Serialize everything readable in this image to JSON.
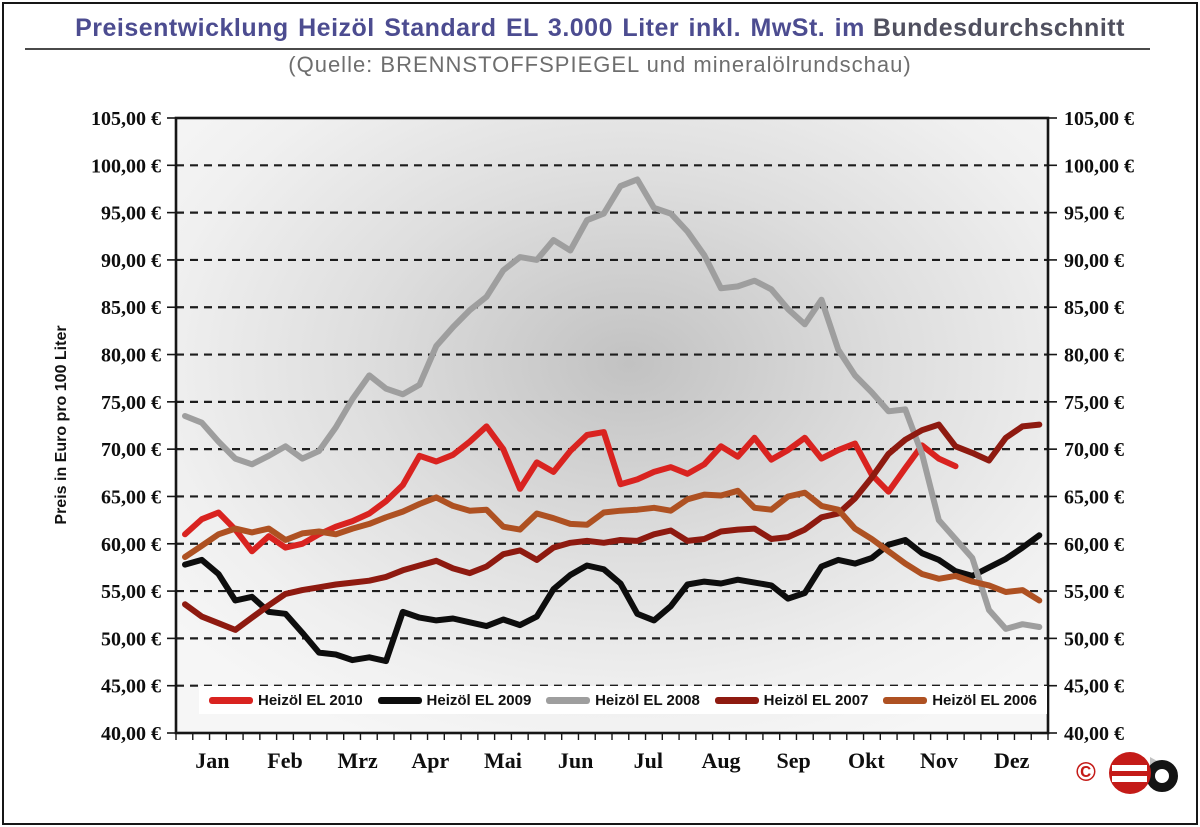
{
  "title": {
    "main": "Preisentwicklung Heizöl Standard EL 3.000 Liter inkl. MwSt. im",
    "tail": "Bundesdurchschnitt",
    "subtitle": "(Quelle: BRENNSTOFFSPIEGEL und mineralölrundschau)"
  },
  "colors": {
    "title_main": "#4c4c90",
    "title_tail": "#50505f",
    "subtitle": "#6e6e6e",
    "axis": "#161616",
    "grid": "#1d1d1d",
    "tick_label": "#0e0e0e",
    "plot_bg_center": "#c2c2c2",
    "plot_bg_mid": "#dedede",
    "plot_bg_edge": "#f6f6f6",
    "legend_bg": "#ffffff",
    "logo_red": "#c41b18",
    "logo_black": "#141414",
    "logo_gray": "#c2c2c2"
  },
  "y_axis": {
    "label": "Preis in Euro pro 100 Liter",
    "tick_labels": [
      "105,00 €",
      "100,00 €",
      "95,00 €",
      "90,00 €",
      "85,00 €",
      "80,00 €",
      "75,00 €",
      "70,00 €",
      "65,00 €",
      "60,00 €",
      "55,00 €",
      "50,00 €",
      "45,00 €",
      "40,00 €"
    ]
  },
  "logo": {
    "copyright": "©"
  },
  "chart_data": {
    "type": "line",
    "title": "Preisentwicklung Heizöl Standard EL 3.000 Liter inkl. MwSt. im Bundesdurchschnitt",
    "source": "(Quelle: BRENNSTOFFSPIEGEL und mineralölrundschau)",
    "ylabel": "Preis in Euro pro 100 Liter",
    "ylim": [
      40,
      105
    ],
    "y_tick_step": 5,
    "grid": "horizontal dashed, solid frame",
    "legend_position": "bottom inside plot",
    "x_unit": "week",
    "points_per_series": 52,
    "categories": [
      "Jan",
      "Feb",
      "Mrz",
      "Apr",
      "Mai",
      "Jun",
      "Jul",
      "Aug",
      "Sep",
      "Okt",
      "Nov",
      "Dez"
    ],
    "series": [
      {
        "name": "Heizöl EL 2010",
        "color": "#d92320",
        "values": [
          61.0,
          62.6,
          63.3,
          61.5,
          59.2,
          60.8,
          59.6,
          60.0,
          61.0,
          61.8,
          62.4,
          63.2,
          64.5,
          66.2,
          69.3,
          68.7,
          69.4,
          70.8,
          72.4,
          70.0,
          65.8,
          68.6,
          67.6,
          69.8,
          71.5,
          71.8,
          66.3,
          66.8,
          67.6,
          68.1,
          67.4,
          68.4,
          70.3,
          69.2,
          71.2,
          68.9,
          69.9,
          71.2,
          69.0,
          69.9,
          70.6,
          67.3,
          65.5,
          68.0,
          70.4,
          69.0,
          68.2,
          null,
          null,
          null,
          null,
          null
        ]
      },
      {
        "name": "Heizöl EL 2009",
        "color": "#0d0d0d",
        "values": [
          57.8,
          58.3,
          56.8,
          54.0,
          54.4,
          52.8,
          52.6,
          50.6,
          48.5,
          48.3,
          47.7,
          48.0,
          47.6,
          52.8,
          52.2,
          51.9,
          52.1,
          51.7,
          51.3,
          52.0,
          51.4,
          52.3,
          55.2,
          56.7,
          57.7,
          57.3,
          55.8,
          52.6,
          51.9,
          53.4,
          55.7,
          56.0,
          55.8,
          56.2,
          55.9,
          55.6,
          54.2,
          54.8,
          57.6,
          58.3,
          57.9,
          58.5,
          59.9,
          60.4,
          59.0,
          58.3,
          57.1,
          56.6,
          57.5,
          58.4,
          59.6,
          60.9
        ]
      },
      {
        "name": "Heizöl EL 2008",
        "color": "#9e9e9e",
        "values": [
          73.5,
          72.8,
          70.8,
          69.0,
          68.4,
          69.3,
          70.3,
          69.0,
          69.8,
          72.3,
          75.3,
          77.8,
          76.4,
          75.8,
          76.8,
          80.9,
          82.9,
          84.7,
          86.1,
          88.9,
          90.3,
          90.0,
          92.1,
          91.0,
          94.2,
          94.9,
          97.8,
          98.5,
          95.5,
          94.9,
          93.0,
          90.5,
          87.0,
          87.2,
          87.8,
          86.9,
          84.8,
          83.2,
          85.8,
          80.5,
          77.8,
          76.0,
          74.0,
          74.2,
          69.5,
          62.5,
          60.5,
          58.5,
          53.0,
          51.0,
          51.5,
          51.2
        ]
      },
      {
        "name": "Heizöl EL 2007",
        "color": "#8e1a10",
        "values": [
          53.6,
          52.3,
          51.6,
          50.9,
          52.2,
          53.5,
          54.7,
          55.1,
          55.4,
          55.7,
          55.9,
          56.1,
          56.5,
          57.2,
          57.7,
          58.2,
          57.4,
          56.9,
          57.6,
          58.9,
          59.3,
          58.3,
          59.6,
          60.1,
          60.3,
          60.1,
          60.4,
          60.3,
          61.0,
          61.4,
          60.3,
          60.5,
          61.3,
          61.5,
          61.6,
          60.5,
          60.7,
          61.5,
          62.8,
          63.2,
          64.8,
          67.0,
          69.5,
          71.0,
          72.0,
          72.6,
          70.3,
          69.6,
          68.8,
          71.2,
          72.4,
          72.6
        ]
      },
      {
        "name": "Heizöl EL 2006",
        "color": "#ae5122",
        "values": [
          58.6,
          59.8,
          61.0,
          61.6,
          61.2,
          61.6,
          60.4,
          61.1,
          61.3,
          61.0,
          61.6,
          62.1,
          62.8,
          63.4,
          64.2,
          64.9,
          64.0,
          63.5,
          63.6,
          61.8,
          61.5,
          63.2,
          62.7,
          62.1,
          62.0,
          63.3,
          63.5,
          63.6,
          63.8,
          63.5,
          64.7,
          65.2,
          65.1,
          65.6,
          63.8,
          63.6,
          65.0,
          65.4,
          64.0,
          63.6,
          61.6,
          60.5,
          59.2,
          57.9,
          56.8,
          56.3,
          56.6,
          56.0,
          55.6,
          54.9,
          55.1,
          54.0
        ]
      }
    ]
  }
}
